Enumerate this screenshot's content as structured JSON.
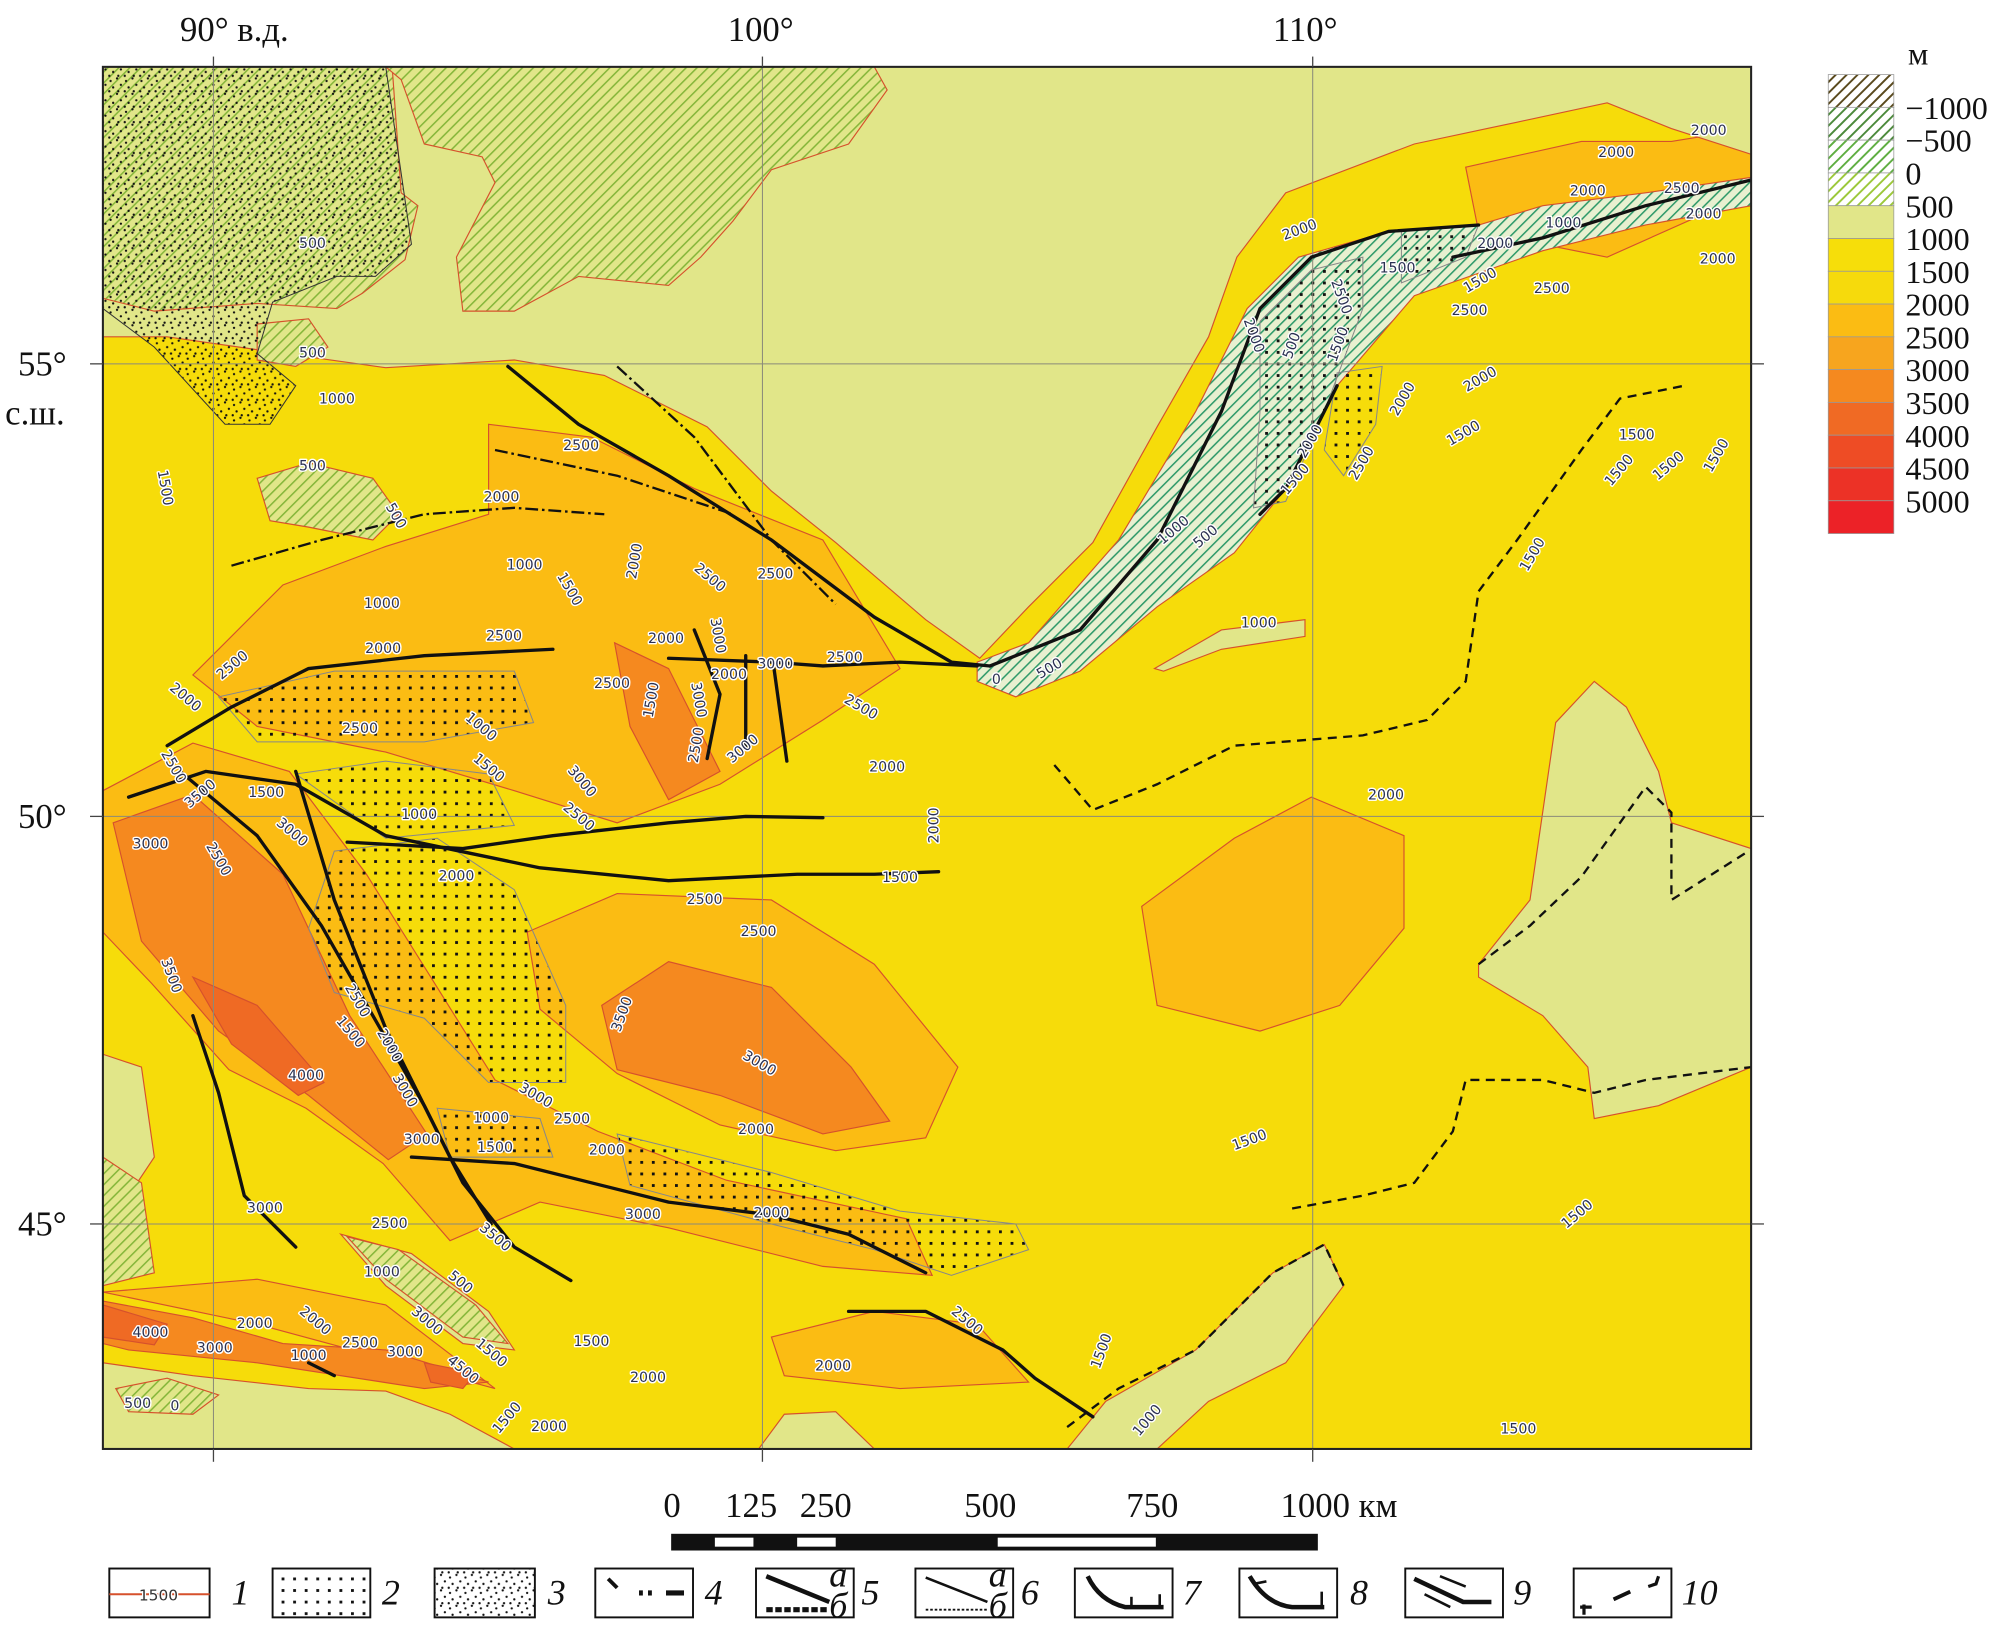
{
  "map": {
    "longitude_labels": [
      "90° в.д.",
      "100°",
      "110°"
    ],
    "latitude_labels": [
      "55°",
      "с.ш.",
      "50°",
      "45°"
    ],
    "contour_labels": [
      500,
      500,
      1000,
      500,
      500,
      1500,
      1000,
      1500,
      2500,
      2000,
      2000,
      2500,
      2500,
      1000,
      2500,
      2000,
      2500,
      2000,
      2500,
      1000,
      1500,
      1000,
      1500,
      2500,
      3500,
      3000,
      3000,
      2500,
      2000,
      2500,
      2500,
      2000,
      3000,
      1500,
      3000,
      2000,
      3000,
      2500,
      2500,
      2500,
      3000,
      3000,
      2500,
      2000,
      2000,
      1500,
      2500,
      3500,
      3000,
      3500,
      4000,
      1500,
      2500,
      2000,
      3000,
      3000,
      2500,
      1000,
      1500,
      2000,
      3000,
      3000,
      2500,
      3500,
      3000,
      2000,
      2000,
      1000,
      500,
      3000,
      2000,
      2000,
      4000,
      3000,
      2500,
      3000,
      1000,
      1500,
      4500,
      1500,
      2000,
      2000,
      2500,
      500,
      0,
      1500,
      2000,
      1500,
      1000,
      1500,
      2000,
      1500,
      1500,
      1000,
      2000,
      2000,
      2000,
      2500,
      2000,
      2000,
      2000,
      2000,
      1000,
      1500,
      1500,
      2500,
      2500,
      2000,
      2000,
      1500,
      1500,
      1500,
      1500,
      1500,
      1500,
      1500,
      2000,
      500,
      2500,
      2000,
      2500,
      1500,
      1000,
      500,
      500,
      0
    ]
  },
  "elevation_legend": {
    "unit": "м",
    "labels": [
      "−1000",
      "−500",
      "0",
      "500",
      "1000",
      "1500",
      "2000",
      "2500",
      "3000",
      "3500",
      "4000",
      "4500",
      "5000"
    ],
    "colors": [
      "#5a4a1e",
      "#4c8a3c",
      "#5fae42",
      "#9cc83a",
      "#e1e689",
      "#f6de0a",
      "#f6da0c",
      "#fbbc13",
      "#f7a51e",
      "#f5891f",
      "#f06a24",
      "#ee4c25",
      "#ec3226",
      "#ec2227"
    ]
  },
  "scale_bar": {
    "labels": [
      "0",
      "125",
      "250",
      "500",
      "750",
      "1000 км"
    ]
  },
  "symbol_legend": {
    "items": [
      {
        "number": "1",
        "sample_text": "1500"
      },
      {
        "number": "2"
      },
      {
        "number": "3"
      },
      {
        "number": "4"
      },
      {
        "number": "5",
        "sub_a": "а",
        "sub_b": "б"
      },
      {
        "number": "6",
        "sub_a": "а",
        "sub_b": "б"
      },
      {
        "number": "7"
      },
      {
        "number": "8"
      },
      {
        "number": "9"
      },
      {
        "number": "10"
      }
    ]
  },
  "colors": {
    "lowland": "#e1e689",
    "yellow": "#f6dc0a",
    "orange": "#fbbc13",
    "orange_dark": "#f7a51e",
    "orange_deep": "#f5891f",
    "red_orange": "#ef6a24",
    "hatch_green": "#86b63a",
    "contour": "#d6512c"
  }
}
